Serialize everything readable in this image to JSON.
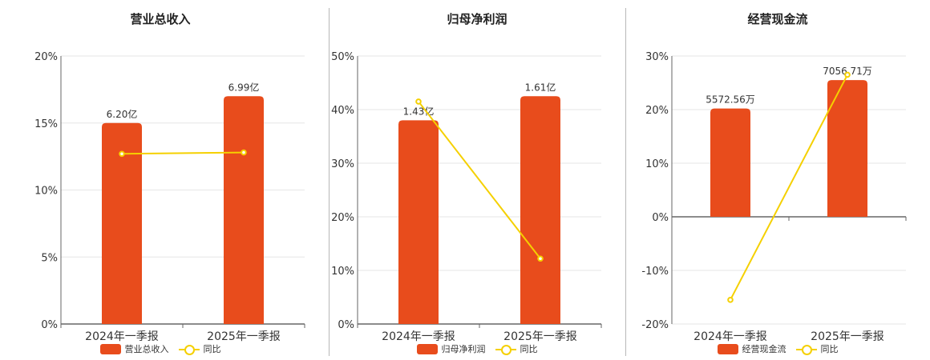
{
  "legend_line_label": "同比",
  "colors": {
    "bar": "#e84c1c",
    "line": "#f5d000",
    "grid": "#e6e6e6",
    "axis": "#666666",
    "text": "#333333"
  },
  "chart_data": [
    {
      "type": "bar",
      "title": "营业总收入",
      "categories": [
        "2024年一季报",
        "2025年一季报"
      ],
      "bar_series": {
        "name": "营业总收入",
        "values": [
          15.0,
          17.0
        ],
        "labels": [
          "6.20亿",
          "6.99亿"
        ]
      },
      "line_series": {
        "name": "同比",
        "values": [
          12.7,
          12.8
        ]
      },
      "yticks": [
        "0%",
        "5%",
        "10%",
        "15%",
        "20%"
      ],
      "ylim": [
        0,
        20
      ],
      "tick_step": 5,
      "grid": true,
      "legend": "bottom"
    },
    {
      "type": "bar",
      "title": "归母净利润",
      "categories": [
        "2024年一季报",
        "2025年一季报"
      ],
      "bar_series": {
        "name": "归母净利润",
        "values": [
          38.0,
          42.5
        ],
        "labels": [
          "1.43亿",
          "1.61亿"
        ]
      },
      "line_series": {
        "name": "同比",
        "values": [
          41.5,
          12.2
        ]
      },
      "yticks": [
        "0%",
        "10%",
        "20%",
        "30%",
        "40%",
        "50%"
      ],
      "ylim": [
        0,
        50
      ],
      "tick_step": 10,
      "grid": true,
      "legend": "bottom"
    },
    {
      "type": "bar",
      "title": "经营现金流",
      "categories": [
        "2024年一季报",
        "2025年一季报"
      ],
      "bar_series": {
        "name": "经营现金流",
        "values": [
          20.2,
          25.5
        ],
        "labels": [
          "5572.56万",
          "7056.71万"
        ]
      },
      "line_series": {
        "name": "同比",
        "values": [
          -15.5,
          26.5
        ]
      },
      "yticks": [
        "-20%",
        "-10%",
        "0%",
        "10%",
        "20%",
        "30%"
      ],
      "ylim": [
        -20,
        30
      ],
      "tick_step": 10,
      "grid": true,
      "legend": "bottom"
    }
  ]
}
